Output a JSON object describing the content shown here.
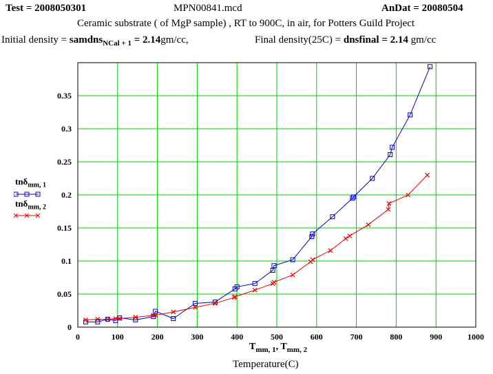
{
  "header": {
    "test_label": "Test =",
    "test_value": "2008050301",
    "file_name": "MPN00841.mcd",
    "andat_label": "AnDat =",
    "andat_value": "20080504",
    "description": "Ceramic substrate ( of MgP sample) , RT to 900C, in  air, for Potters Guild Project",
    "initial_label": "Initial density =",
    "initial_var": "samdns",
    "initial_var_sub": "NCal + 1",
    "initial_eq": "=",
    "initial_value": "2.14",
    "initial_unit": "gm/cc,",
    "final_label": "Final density(25C) =",
    "final_var": "dnsfinal",
    "final_eq": "=",
    "final_value": "2.14",
    "final_unit": "gm/cc"
  },
  "chart_data": {
    "type": "line",
    "title": "Ceramic substrate ( of MgP sample) , RT to 900C, in  air, for Potters Guild Project",
    "xlabel": "Temperature(C)",
    "x_var_label": "T",
    "x_var_sub1": "mm, 1",
    "x_var_sep": ", T",
    "x_var_sub2": "mm, 2",
    "ylabel": "",
    "xlim": [
      0,
      1000
    ],
    "ylim": [
      0,
      0.4
    ],
    "xticks": [
      0,
      100,
      200,
      300,
      400,
      500,
      600,
      700,
      800,
      900,
      1000
    ],
    "xtick_labels": [
      "0",
      "100",
      "200",
      "300",
      "400",
      "500",
      "600",
      "700",
      "800",
      "900",
      "1000"
    ],
    "yticks": [
      0,
      0.05,
      0.1,
      0.15,
      0.2,
      0.25,
      0.3,
      0.35
    ],
    "ytick_labels": [
      "0",
      "0.05",
      "0.1",
      "0.15",
      "0.2",
      "0.25",
      "0.3",
      "0.35"
    ],
    "grid": true,
    "series": [
      {
        "name": "tnδmm, 1",
        "legend_main": "tnδ",
        "legend_sub": "mm, 1",
        "color": "#0000cc",
        "marker": "square",
        "x": [
          20,
          50,
          75,
          95,
          105,
          145,
          190,
          195,
          240,
          295,
          345,
          395,
          400,
          445,
          490,
          493,
          540,
          588,
          590,
          640,
          690,
          693,
          740,
          785,
          790,
          835,
          885
        ],
        "y": [
          0.008,
          0.008,
          0.012,
          0.01,
          0.014,
          0.011,
          0.016,
          0.024,
          0.013,
          0.036,
          0.038,
          0.058,
          0.061,
          0.066,
          0.086,
          0.093,
          0.102,
          0.137,
          0.141,
          0.167,
          0.195,
          0.197,
          0.225,
          0.261,
          0.272,
          0.321,
          0.394
        ]
      },
      {
        "name": "tnδmm, 2",
        "legend_main": "tnδ",
        "legend_sub": "mm, 2",
        "color": "#ee0000",
        "marker": "x",
        "x": [
          20,
          50,
          75,
          95,
          105,
          145,
          190,
          195,
          240,
          295,
          345,
          393,
          395,
          445,
          490,
          493,
          540,
          585,
          590,
          635,
          673,
          683,
          730,
          780,
          782,
          830,
          878
        ],
        "y": [
          0.011,
          0.012,
          0.012,
          0.013,
          0.013,
          0.015,
          0.018,
          0.018,
          0.023,
          0.03,
          0.036,
          0.045,
          0.046,
          0.056,
          0.066,
          0.068,
          0.079,
          0.099,
          0.102,
          0.116,
          0.134,
          0.138,
          0.155,
          0.178,
          0.187,
          0.2,
          0.23
        ]
      }
    ]
  }
}
